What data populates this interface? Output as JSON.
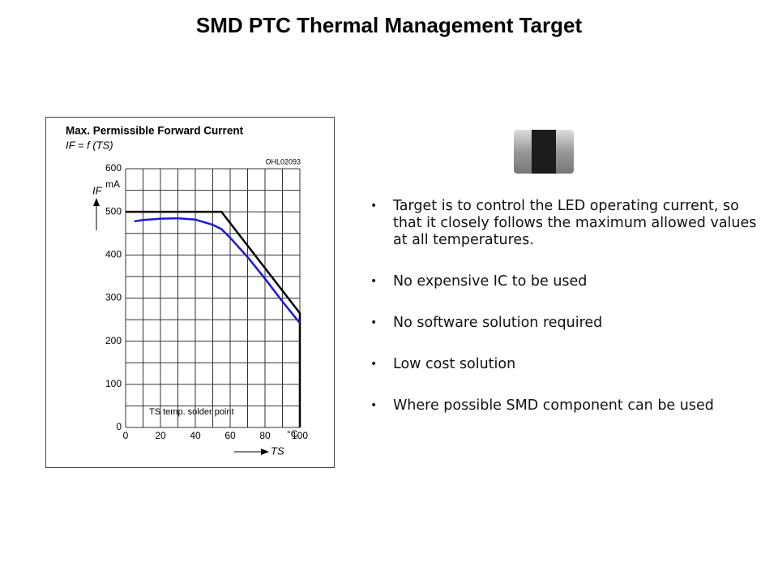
{
  "title": "SMD PTC Thermal Management Target",
  "bullets": [
    "Target is to control the LED operating current, so that it closely follows the maximum allowed values at all temperatures.",
    "No expensive IC to be used",
    "No software solution required",
    "Low cost solution",
    "Where possible SMD component can be used"
  ],
  "chart_data": {
    "type": "line",
    "title": "Max. Permissible Forward Current",
    "subtitle": "IF = f (TS)",
    "code": "OHL02093",
    "y_label": "IF",
    "y_unit": "mA",
    "x_label": "TS",
    "x_unit": "°C",
    "annotation": "TS temp. solder point",
    "xlim": [
      0,
      100
    ],
    "ylim": [
      0,
      600
    ],
    "xticks": [
      0,
      20,
      40,
      60,
      80,
      100
    ],
    "yticks": [
      0,
      100,
      200,
      300,
      400,
      500,
      600
    ],
    "minor_xticks": [
      10,
      30,
      50,
      70,
      90
    ],
    "minor_yticks": [
      50,
      150,
      250,
      350,
      450,
      550
    ],
    "grid": true,
    "series": [
      {
        "color": "#000000",
        "x": [
          0,
          55,
          100,
          100
        ],
        "values": [
          500,
          500,
          265,
          0
        ]
      },
      {
        "color": "#1a1adc",
        "x": [
          5,
          10,
          20,
          30,
          40,
          50,
          55,
          60,
          70,
          80,
          90,
          100
        ],
        "values": [
          478,
          481,
          484,
          485,
          482,
          470,
          460,
          440,
          395,
          345,
          292,
          242
        ]
      }
    ]
  }
}
